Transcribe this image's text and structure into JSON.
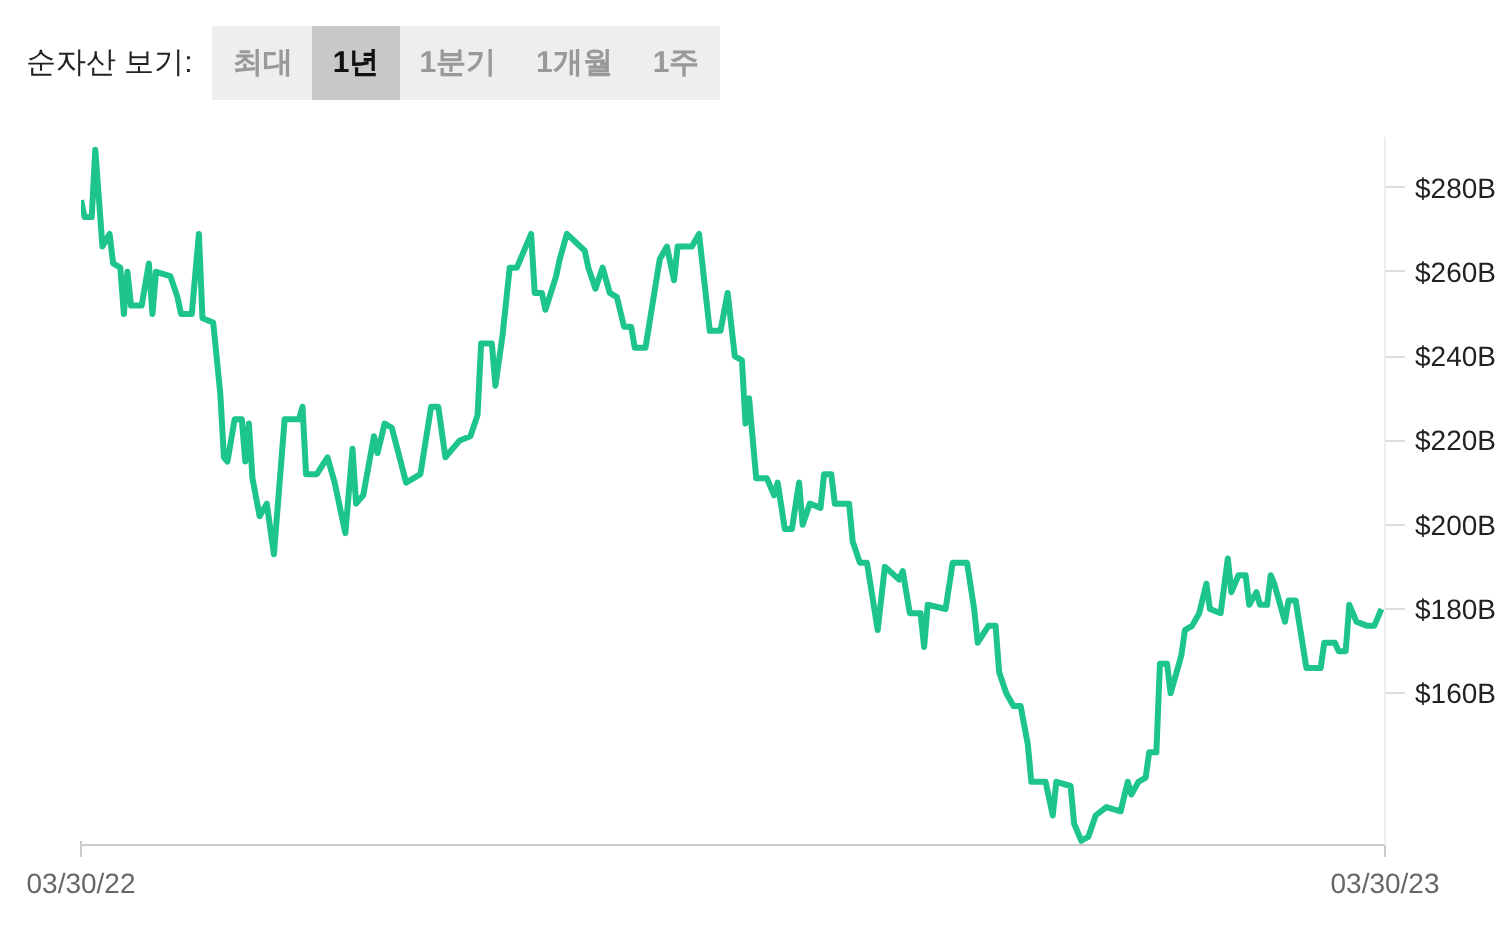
{
  "chart_data": {
    "type": "line",
    "annotations": [
      "순자산 보기:",
      "최대",
      "1년",
      "1분기",
      "1개월",
      "1주"
    ],
    "x": [
      "2022-03-30",
      "2022-03-31",
      "2022-04-02",
      "2022-04-03",
      "2022-04-05",
      "2022-04-07",
      "2022-04-08",
      "2022-04-10",
      "2022-04-11",
      "2022-04-12",
      "2022-04-13",
      "2022-04-16",
      "2022-04-18",
      "2022-04-19",
      "2022-04-20",
      "2022-04-24",
      "2022-04-26",
      "2022-04-27",
      "2022-04-30",
      "2022-05-02",
      "2022-05-03",
      "2022-05-06",
      "2022-05-08",
      "2022-05-09",
      "2022-05-10",
      "2022-05-12",
      "2022-05-14",
      "2022-05-15",
      "2022-05-16",
      "2022-05-17",
      "2022-05-19",
      "2022-05-21",
      "2022-05-23",
      "2022-05-26",
      "2022-05-30",
      "2022-05-31",
      "2022-06-01",
      "2022-06-04",
      "2022-06-07",
      "2022-06-09",
      "2022-06-12",
      "2022-06-14",
      "2022-06-15",
      "2022-06-17",
      "2022-06-20",
      "2022-06-21",
      "2022-06-23",
      "2022-06-25",
      "2022-06-29",
      "2022-07-03",
      "2022-07-06",
      "2022-07-08",
      "2022-07-10",
      "2022-07-14",
      "2022-07-17",
      "2022-07-19",
      "2022-07-20",
      "2022-07-23",
      "2022-07-24",
      "2022-07-26",
      "2022-07-28",
      "2022-07-30",
      "2022-08-03",
      "2022-08-04",
      "2022-08-06",
      "2022-08-07",
      "2022-08-10",
      "2022-08-11",
      "2022-08-13",
      "2022-08-18",
      "2022-08-19",
      "2022-08-21",
      "2022-08-23",
      "2022-08-25",
      "2022-08-27",
      "2022-08-29",
      "2022-08-31",
      "2022-09-01",
      "2022-09-04",
      "2022-09-08",
      "2022-09-10",
      "2022-09-12",
      "2022-09-13",
      "2022-09-17",
      "2022-09-19",
      "2022-09-22",
      "2022-09-25",
      "2022-09-27",
      "2022-09-29",
      "2022-10-01",
      "2022-10-02",
      "2022-10-03",
      "2022-10-05",
      "2022-10-08",
      "2022-10-10",
      "2022-10-11",
      "2022-10-13",
      "2022-10-15",
      "2022-10-17",
      "2022-10-18",
      "2022-10-20",
      "2022-10-23",
      "2022-10-24",
      "2022-10-26",
      "2022-10-27",
      "2022-10-31",
      "2022-11-01",
      "2022-11-03",
      "2022-11-05",
      "2022-11-08",
      "2022-11-10",
      "2022-11-14",
      "2022-11-15",
      "2022-11-17",
      "2022-11-20",
      "2022-11-21",
      "2022-11-22",
      "2022-11-27",
      "2022-11-29",
      "2022-12-03",
      "2022-12-05",
      "2022-12-06",
      "2022-12-09",
      "2022-12-11",
      "2022-12-12",
      "2022-12-14",
      "2022-12-16",
      "2022-12-18",
      "2022-12-20",
      "2022-12-21",
      "2022-12-25",
      "2022-12-27",
      "2022-12-28",
      "2023-01-01",
      "2023-01-02",
      "2023-01-04",
      "2023-01-06",
      "2023-01-08",
      "2023-01-11",
      "2023-01-15",
      "2023-01-17",
      "2023-01-18",
      "2023-01-20",
      "2023-01-22",
      "2023-01-23",
      "2023-01-25",
      "2023-01-26",
      "2023-01-28",
      "2023-01-29",
      "2023-02-01",
      "2023-02-02",
      "2023-02-04",
      "2023-02-06",
      "2023-02-08",
      "2023-02-09",
      "2023-02-12",
      "2023-02-14",
      "2023-02-15",
      "2023-02-17",
      "2023-02-19",
      "2023-02-20",
      "2023-02-22",
      "2023-02-23",
      "2023-02-25",
      "2023-02-26",
      "2023-02-27",
      "2023-03-02",
      "2023-03-03",
      "2023-03-05",
      "2023-03-08",
      "2023-03-12",
      "2023-03-13",
      "2023-03-16",
      "2023-03-17",
      "2023-03-19",
      "2023-03-20",
      "2023-03-22",
      "2023-03-25",
      "2023-03-27",
      "2023-03-28",
      "2023-03-29"
    ],
    "series": [
      {
        "color": "#1dc58a",
        "values": [
          277,
          273,
          273,
          289,
          266,
          269,
          262,
          261,
          250,
          260,
          252,
          252,
          262,
          250,
          260,
          259,
          254,
          250,
          250,
          269,
          249,
          248,
          231,
          216,
          215,
          225,
          225,
          215,
          224,
          211,
          202,
          205,
          193,
          225,
          225,
          228,
          212,
          212,
          216,
          210,
          198,
          218,
          205,
          207,
          221,
          217,
          224,
          223,
          210,
          212,
          228,
          228,
          216,
          220,
          221,
          226,
          243,
          243,
          233,
          245,
          261,
          261,
          269,
          255,
          255,
          251,
          259,
          263,
          269,
          265,
          261,
          256,
          261,
          255,
          254,
          247,
          247,
          242,
          242,
          263,
          266,
          258,
          266,
          266,
          269,
          246,
          246,
          255,
          240,
          239,
          224,
          230,
          211,
          211,
          207,
          210,
          199,
          199,
          210,
          200,
          205,
          204,
          212,
          212,
          205,
          205,
          196,
          191,
          191,
          175,
          190,
          187,
          189,
          179,
          179,
          171,
          181,
          180,
          191,
          191,
          180,
          172,
          176,
          176,
          165,
          160,
          157,
          157,
          148,
          139,
          139,
          131,
          139,
          138,
          129,
          125,
          126,
          131,
          133,
          132,
          139,
          136,
          139,
          140,
          146,
          146,
          167,
          167,
          160,
          169,
          175,
          176,
          179,
          186,
          180,
          179,
          192,
          184,
          188,
          188,
          181,
          184,
          181,
          181,
          188,
          186,
          177,
          182,
          182,
          166,
          166,
          172,
          172,
          170,
          170,
          181,
          177,
          176,
          176,
          178,
          180
        ]
      }
    ],
    "xlim": [
      "2022-03-30",
      "2023-03-30"
    ],
    "xticks": [
      {
        "value": "2022-03-30",
        "label": "03/30/22"
      },
      {
        "value": "2023-03-30",
        "label": "03/30/23"
      }
    ],
    "ylim": [
      124,
      292
    ],
    "yticks": [
      {
        "value": 160,
        "label": "$160B"
      },
      {
        "value": 180,
        "label": "$180B"
      },
      {
        "value": 200,
        "label": "$200B"
      },
      {
        "value": 220,
        "label": "$220B"
      },
      {
        "value": 240,
        "label": "$240B"
      },
      {
        "value": 260,
        "label": "$260B"
      },
      {
        "value": 280,
        "label": "$280B"
      }
    ],
    "grid": false,
    "marker": "none",
    "line_style": "solid"
  }
}
